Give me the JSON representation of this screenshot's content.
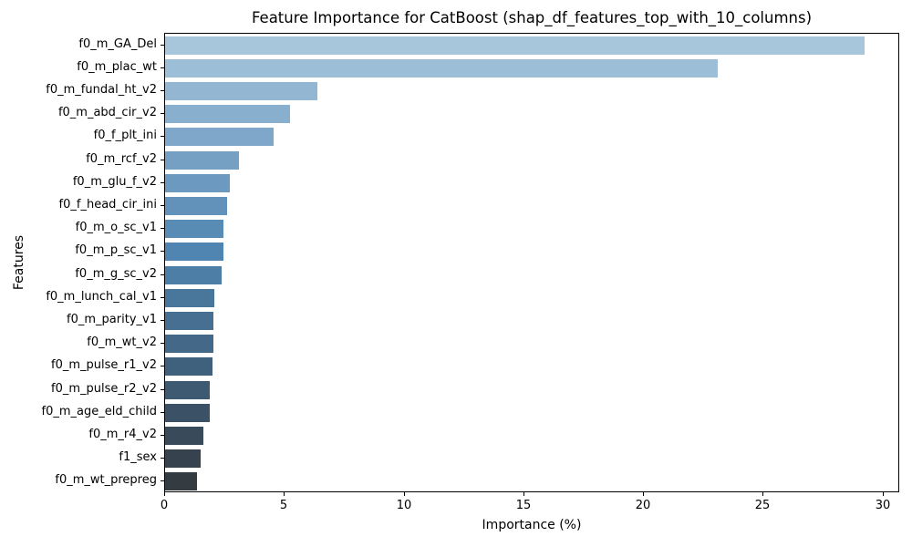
{
  "chart_data": {
    "type": "bar",
    "orientation": "horizontal",
    "title": "Feature Importance for CatBoost (shap_df_features_top_with_10_columns)",
    "xlabel": "Importance (%)",
    "ylabel": "Features",
    "categories": [
      "f0_m_GA_Del",
      "f0_m_plac_wt",
      "f0_m_fundal_ht_v2",
      "f0_m_abd_cir_v2",
      "f0_f_plt_ini",
      "f0_m_rcf_v2",
      "f0_m_glu_f_v2",
      "f0_f_head_cir_ini",
      "f0_m_o_sc_v1",
      "f0_m_p_sc_v1",
      "f0_m_g_sc_v2",
      "f0_m_lunch_cal_v1",
      "f0_m_parity_v1",
      "f0_m_wt_v2",
      "f0_m_pulse_r1_v2",
      "f0_m_pulse_r2_v2",
      "f0_m_age_eld_child",
      "f0_m_r4_v2",
      "f1_sex",
      "f0_m_wt_prepreg"
    ],
    "values": [
      29.2,
      23.1,
      6.35,
      5.2,
      4.55,
      3.1,
      2.7,
      2.6,
      2.45,
      2.42,
      2.35,
      2.06,
      2.03,
      2.01,
      1.97,
      1.87,
      1.86,
      1.6,
      1.49,
      1.34
    ],
    "xlim": [
      0,
      30.7
    ],
    "xticks": [
      0,
      5,
      10,
      15,
      20,
      25,
      30
    ],
    "grid": false,
    "legend": false,
    "bar_colors": [
      "#a7c6dc",
      "#9dbed7",
      "#93b6d3",
      "#88afce",
      "#7ea7c9",
      "#75a0c4",
      "#6b99bf",
      "#6292ba",
      "#588cb5",
      "#4f85b0",
      "#4c7ea6",
      "#49779c",
      "#466f92",
      "#436888",
      "#40617e",
      "#3e5a72",
      "#3b5266",
      "#394b5a",
      "#36434e",
      "#343c42"
    ],
    "spine_color": "#000000",
    "text_color": "#000000"
  }
}
